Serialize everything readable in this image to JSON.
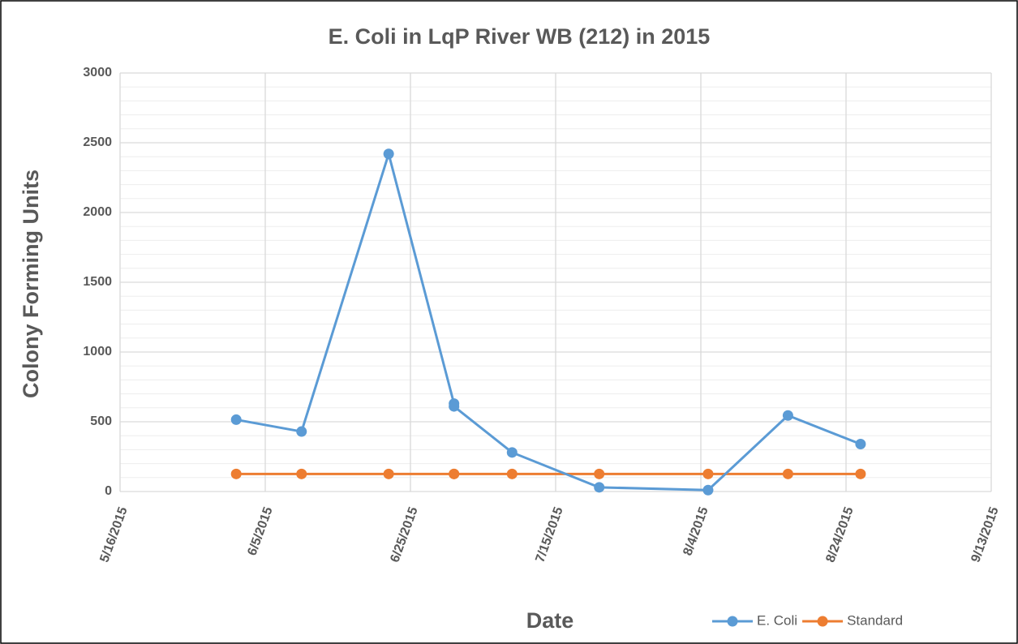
{
  "chart_data": {
    "type": "line",
    "title": "E. Coli in LqP River WB (212) in 2015",
    "xlabel": "Date",
    "ylabel": "Colony Forming Units",
    "x": [
      "2015-06-01",
      "2015-06-10",
      "2015-06-22",
      "2015-07-01",
      "2015-07-01",
      "2015-07-09",
      "2015-07-21",
      "2015-08-05",
      "2015-08-16",
      "2015-08-26"
    ],
    "series": [
      {
        "name": "E. Coli",
        "color": "#5b9bd5",
        "values": [
          515,
          430,
          2420,
          630,
          610,
          280,
          30,
          10,
          545,
          340
        ]
      },
      {
        "name": "Standard",
        "color": "#ed7d31",
        "values": [
          126,
          126,
          126,
          126,
          126,
          126,
          126,
          126,
          126,
          126
        ]
      }
    ],
    "xlim": [
      "2015-05-16",
      "2015-09-13"
    ],
    "xticks": [
      {
        "value": "2015-05-16",
        "label": "5/16/2015"
      },
      {
        "value": "2015-06-05",
        "label": "6/5/2015"
      },
      {
        "value": "2015-06-25",
        "label": "6/25/2015"
      },
      {
        "value": "2015-07-15",
        "label": "7/15/2015"
      },
      {
        "value": "2015-08-04",
        "label": "8/4/2015"
      },
      {
        "value": "2015-08-24",
        "label": "8/24/2015"
      },
      {
        "value": "2015-09-13",
        "label": "9/13/2015"
      }
    ],
    "ylim": [
      0,
      3000
    ],
    "yticks": [
      0,
      500,
      1000,
      1500,
      2000,
      2500,
      3000
    ],
    "yminorticks": [
      100,
      200,
      300,
      400,
      600,
      700,
      800,
      900,
      1100,
      1200,
      1300,
      1400,
      1600,
      1700,
      1800,
      1900,
      2100,
      2200,
      2300,
      2400,
      2600,
      2700,
      2800,
      2900
    ],
    "grid": true,
    "legend": "bottom-right"
  }
}
